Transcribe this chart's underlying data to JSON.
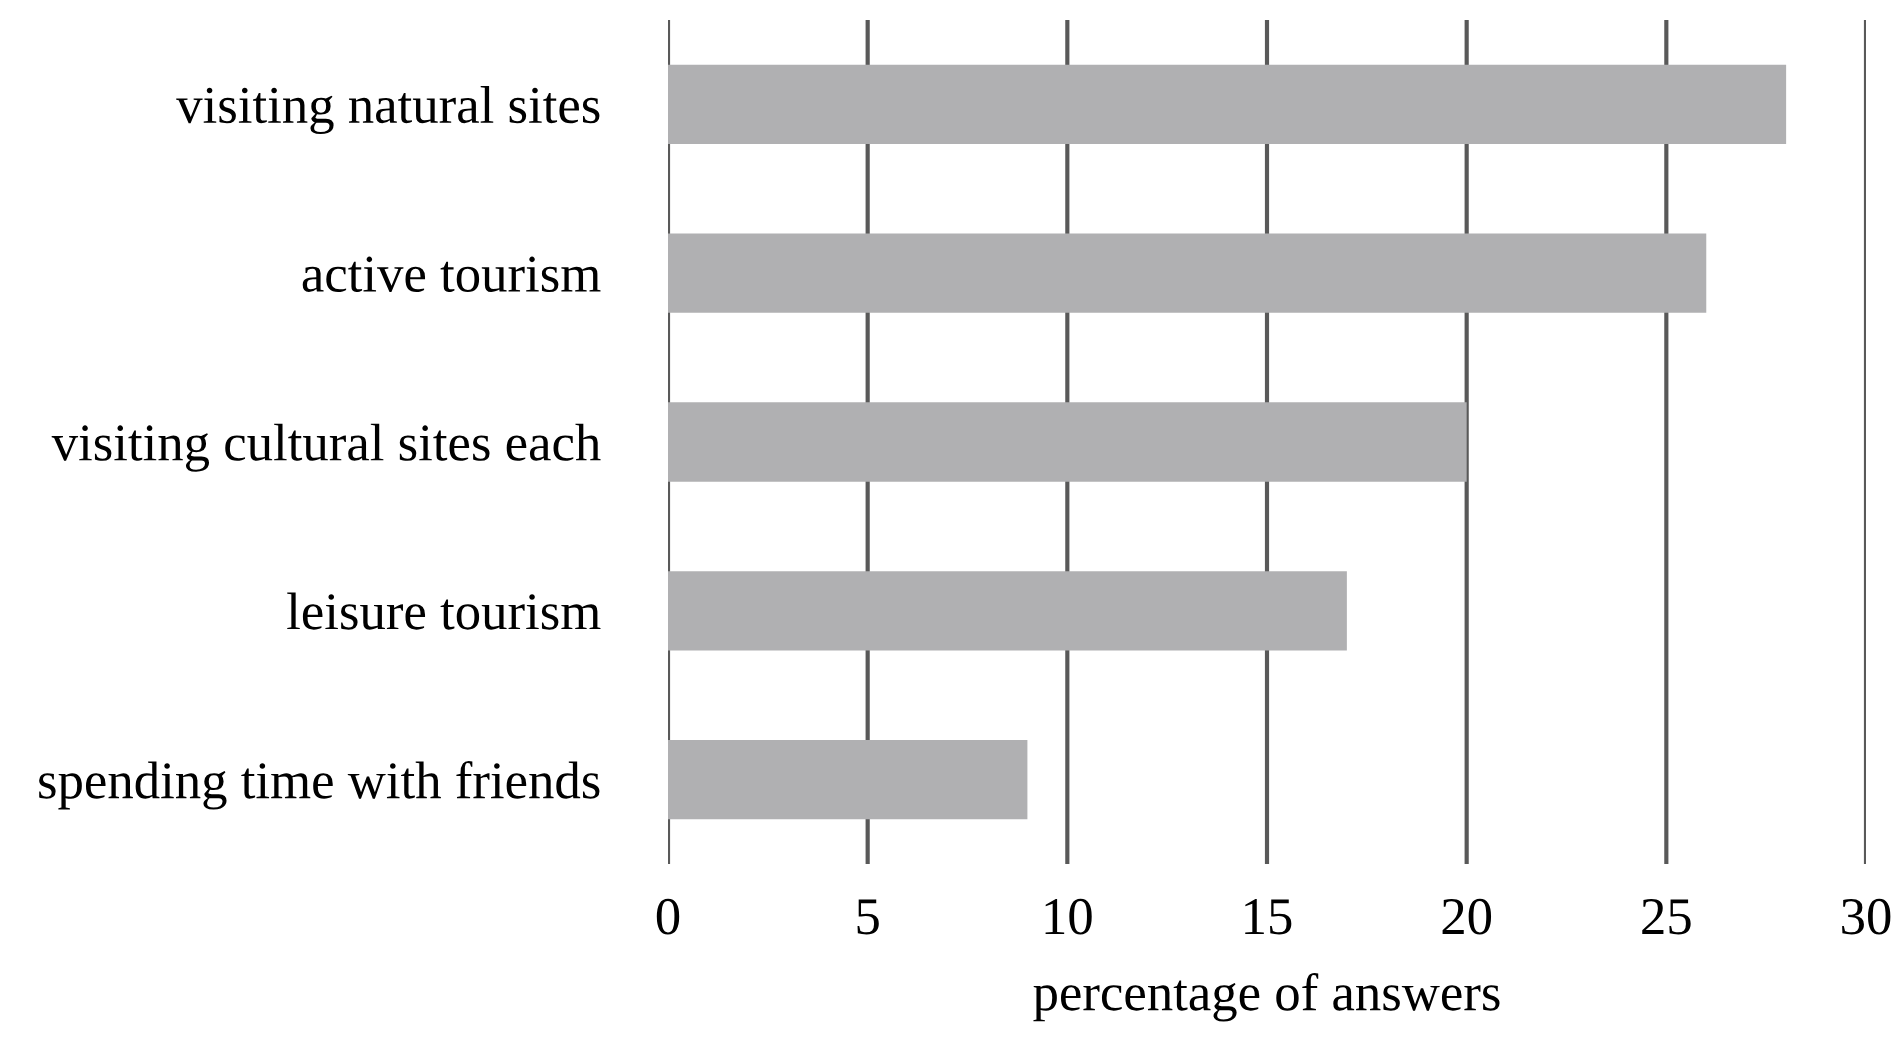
{
  "chart_data": {
    "type": "bar",
    "orientation": "horizontal",
    "xlabel": "percentage of answers",
    "categories": [
      "visiting natural sites",
      "active tourism",
      "visiting cultural sites each",
      "leisure tourism",
      "spending time with friends"
    ],
    "values": [
      28,
      26,
      20,
      17,
      9
    ],
    "color": "#b0b0b2",
    "xlim": [
      0,
      30
    ],
    "xticks": [
      0,
      5,
      10,
      15,
      20,
      25,
      30
    ],
    "grid": "x",
    "legend": false
  }
}
